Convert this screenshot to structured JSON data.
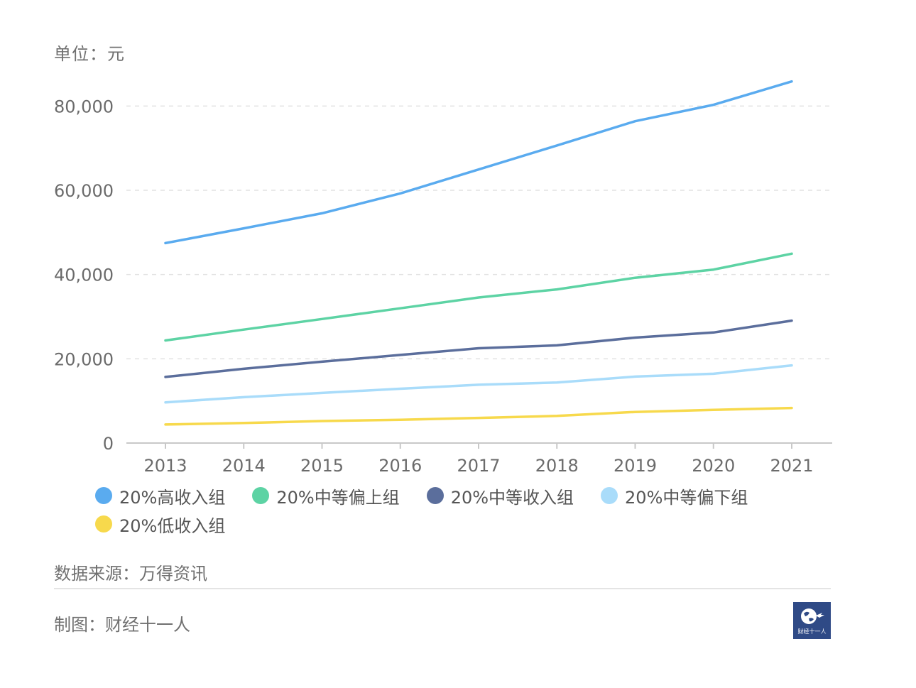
{
  "unit_label": "单位：元",
  "source_label": "数据来源：万得资讯",
  "credit_label": "制图：财经十一人",
  "logo_text": "财经十一人",
  "chart_data": {
    "type": "line",
    "title": "",
    "xlabel": "",
    "ylabel": "",
    "x": [
      "2013",
      "2014",
      "2015",
      "2016",
      "2017",
      "2018",
      "2019",
      "2020",
      "2021"
    ],
    "ylim": [
      0,
      90000
    ],
    "yticks": [
      0,
      20000,
      40000,
      60000,
      80000
    ],
    "ytick_labels": [
      "0",
      "20,000",
      "40,000",
      "60,000",
      "80,000"
    ],
    "grid": true,
    "legend_position": "bottom",
    "series": [
      {
        "name": "20%高收入组",
        "color": "#5aabef",
        "values": [
          47457,
          50968,
          54544,
          59259,
          64934,
          70640,
          76401,
          80294,
          85836
        ]
      },
      {
        "name": "20%中等偏上组",
        "color": "#5dd3a4",
        "values": [
          24361,
          26937,
          29438,
          31990,
          34547,
          36471,
          39230,
          41172,
          44949
        ]
      },
      {
        "name": "20%中等收入组",
        "color": "#5b6e9c",
        "values": [
          15698,
          17631,
          19320,
          20924,
          22495,
          23189,
          25035,
          26249,
          29053
        ]
      },
      {
        "name": "20%中等偏下组",
        "color": "#a9dcfa",
        "values": [
          9654,
          10887,
          11894,
          12899,
          13843,
          14361,
          15777,
          16443,
          18446
        ]
      },
      {
        "name": "20%低收入组",
        "color": "#f7d94c",
        "values": [
          4402,
          4747,
          5221,
          5529,
          5958,
          6440,
          7380,
          7869,
          8333
        ]
      }
    ]
  }
}
